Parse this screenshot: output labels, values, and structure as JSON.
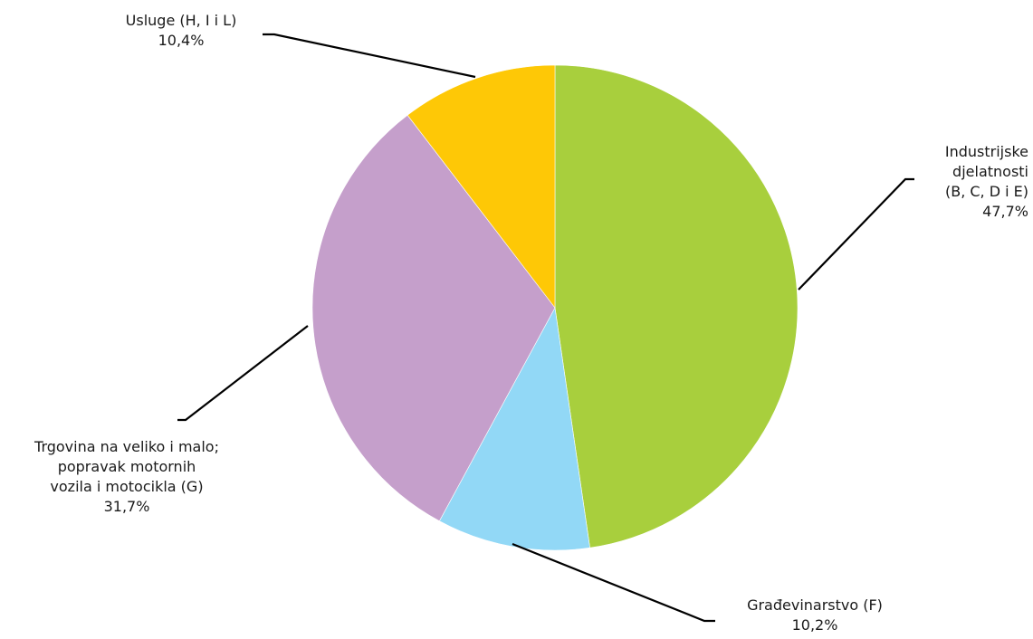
{
  "chart_data": {
    "type": "pie",
    "title": "",
    "slices": [
      {
        "label_lines": [
          "Industrijske",
          "djelatnosti",
          "(B, C, D i  E)"
        ],
        "percent_text": "47,7%",
        "value": 47.7,
        "color": "#a8cf3d"
      },
      {
        "label_lines": [
          "Građevinarstvo (F)"
        ],
        "percent_text": "10,2%",
        "value": 10.2,
        "color": "#92d8f6"
      },
      {
        "label_lines": [
          "Trgovina na veliko i malo;",
          "popravak motornih",
          "vozila i motocikla (G)"
        ],
        "percent_text": "31,7%",
        "value": 31.7,
        "color": "#c59fcb"
      },
      {
        "label_lines": [
          "Usluge (H, I i L)"
        ],
        "percent_text": "10,4%",
        "value": 10.4,
        "color": "#fec806"
      }
    ],
    "start_angle_deg": 0,
    "direction": "clockwise",
    "legend": "none",
    "leader_line_color": "#000000"
  }
}
